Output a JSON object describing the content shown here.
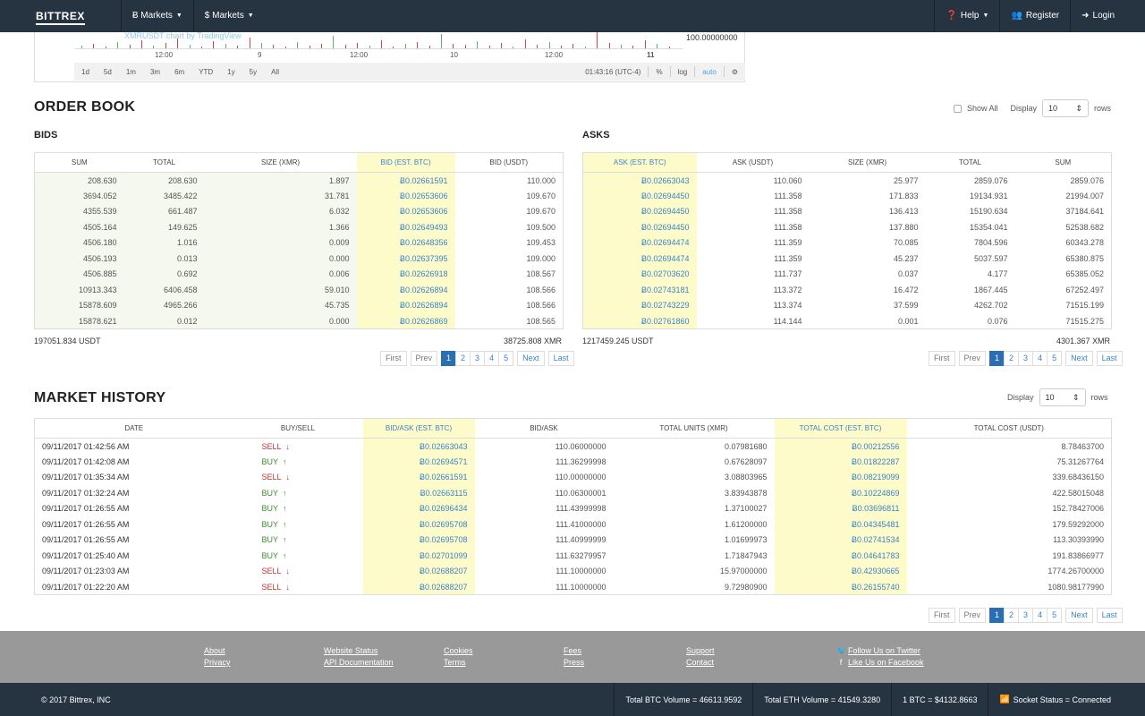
{
  "navbar": {
    "brand": "BITTREX",
    "markets_btc": "Ƀ Markets",
    "markets_usd": "$ Markets",
    "help": "Help",
    "register": "Register",
    "login": "Login"
  },
  "chart": {
    "watermark": "XMRUSDT chart by TradingView",
    "price_label": "100.00000000",
    "time_labels": [
      "12:00",
      "9",
      "12:00",
      "10",
      "12:00",
      "11"
    ],
    "ranges": [
      "1d",
      "5d",
      "1m",
      "3m",
      "6m",
      "YTD",
      "1y",
      "5y",
      "All"
    ],
    "clock": "01:43:16 (UTC-4)",
    "percent": "%",
    "log": "log",
    "auto": "auto"
  },
  "orderbook": {
    "title": "ORDER BOOK",
    "show_all": "Show All",
    "display_label": "Display",
    "display_value": "10",
    "rows_label": "rows",
    "bids": {
      "title": "BIDS",
      "headers": [
        "SUM",
        "TOTAL",
        "SIZE (XMR)",
        "BID (EST. BTC)",
        "BID (USDT)"
      ],
      "rows": [
        [
          "208.630",
          "208.630",
          "1.897",
          "Ƀ0.02661591",
          "110.000"
        ],
        [
          "3694.052",
          "3485.422",
          "31.781",
          "Ƀ0.02653606",
          "109.670"
        ],
        [
          "4355.539",
          "661.487",
          "6.032",
          "Ƀ0.02653606",
          "109.670"
        ],
        [
          "4505.164",
          "149.625",
          "1.366",
          "Ƀ0.02649493",
          "109.500"
        ],
        [
          "4506.180",
          "1.016",
          "0.009",
          "Ƀ0.02648356",
          "109.453"
        ],
        [
          "4506.193",
          "0.013",
          "0.000",
          "Ƀ0.02637395",
          "109.000"
        ],
        [
          "4506.885",
          "0.692",
          "0.006",
          "Ƀ0.02626918",
          "108.567"
        ],
        [
          "10913.343",
          "6406.458",
          "59.010",
          "Ƀ0.02626894",
          "108.566"
        ],
        [
          "15878.609",
          "4965.266",
          "45.735",
          "Ƀ0.02626894",
          "108.566"
        ],
        [
          "15878.621",
          "0.012",
          "0.000",
          "Ƀ0.02626869",
          "108.565"
        ]
      ],
      "total_usdt": "197051.834 USDT",
      "total_xmr": "38725.808 XMR"
    },
    "asks": {
      "title": "ASKS",
      "headers": [
        "ASK (EST. BTC)",
        "ASK (USDT)",
        "SIZE (XMR)",
        "TOTAL",
        "SUM"
      ],
      "rows": [
        [
          "Ƀ0.02663043",
          "110.060",
          "25.977",
          "2859.076",
          "2859.076"
        ],
        [
          "Ƀ0.02694450",
          "111.358",
          "171.833",
          "19134.931",
          "21994.007"
        ],
        [
          "Ƀ0.02694450",
          "111.358",
          "136.413",
          "15190.634",
          "37184.641"
        ],
        [
          "Ƀ0.02694450",
          "111.358",
          "137.880",
          "15354.041",
          "52538.682"
        ],
        [
          "Ƀ0.02694474",
          "111.359",
          "70.085",
          "7804.596",
          "60343.278"
        ],
        [
          "Ƀ0.02694474",
          "111.359",
          "45.237",
          "5037.597",
          "65380.875"
        ],
        [
          "Ƀ0.02703620",
          "111.737",
          "0.037",
          "4.177",
          "65385.052"
        ],
        [
          "Ƀ0.02743181",
          "113.372",
          "16.472",
          "1867.445",
          "67252.497"
        ],
        [
          "Ƀ0.02743229",
          "113.374",
          "37.599",
          "4262.702",
          "71515.199"
        ],
        [
          "Ƀ0.02761860",
          "114.144",
          "0.001",
          "0.076",
          "71515.275"
        ]
      ],
      "total_usdt": "1217459.245 USDT",
      "total_xmr": "4301.367 XMR"
    }
  },
  "pager": {
    "first": "First",
    "prev": "Prev",
    "p1": "1",
    "p2": "2",
    "p3": "3",
    "p4": "4",
    "p5": "5",
    "next": "Next",
    "last": "Last"
  },
  "history": {
    "title": "MARKET HISTORY",
    "display_label": "Display",
    "display_value": "10",
    "rows_label": "rows",
    "headers": [
      "DATE",
      "BUY/SELL",
      "BID/ASK (EST. BTC)",
      "BID/ASK",
      "TOTAL UNITS (XMR)",
      "TOTAL COST (EST. BTC)",
      "TOTAL COST (USDT)"
    ],
    "rows": [
      [
        "09/11/2017 01:42:56 AM",
        "SELL",
        "Ƀ0.02663043",
        "110.06000000",
        "0.07981680",
        "Ƀ0.00212556",
        "8.78463700"
      ],
      [
        "09/11/2017 01:42:08 AM",
        "BUY",
        "Ƀ0.02694571",
        "111.36299998",
        "0.67628097",
        "Ƀ0.01822287",
        "75.31267764"
      ],
      [
        "09/11/2017 01:35:34 AM",
        "SELL",
        "Ƀ0.02661591",
        "110.00000000",
        "3.08803965",
        "Ƀ0.08219099",
        "339.68436150"
      ],
      [
        "09/11/2017 01:32:24 AM",
        "BUY",
        "Ƀ0.02663115",
        "110.06300001",
        "3.83943878",
        "Ƀ0.10224869",
        "422.58015048"
      ],
      [
        "09/11/2017 01:26:55 AM",
        "BUY",
        "Ƀ0.02696434",
        "111.43999998",
        "1.37100027",
        "Ƀ0.03696811",
        "152.78427006"
      ],
      [
        "09/11/2017 01:26:55 AM",
        "BUY",
        "Ƀ0.02695708",
        "111.41000000",
        "1.61200000",
        "Ƀ0.04345481",
        "179.59292000"
      ],
      [
        "09/11/2017 01:26:55 AM",
        "BUY",
        "Ƀ0.02695708",
        "111.40999999",
        "1.01699973",
        "Ƀ0.02741534",
        "113.30393990"
      ],
      [
        "09/11/2017 01:25:40 AM",
        "BUY",
        "Ƀ0.02701099",
        "111.63279957",
        "1.71847943",
        "Ƀ0.04641783",
        "191.83866977"
      ],
      [
        "09/11/2017 01:23:03 AM",
        "SELL",
        "Ƀ0.02688207",
        "111.10000000",
        "15.97000000",
        "Ƀ0.42930665",
        "1774.26700000"
      ],
      [
        "09/11/2017 01:22:20 AM",
        "SELL",
        "Ƀ0.02688207",
        "111.10000000",
        "9.72980900",
        "Ƀ0.26155740",
        "1080.98177990"
      ]
    ]
  },
  "footer": {
    "about": "About",
    "privacy": "Privacy",
    "website_status": "Website Status",
    "api_docs": "API Documentation",
    "cookies": "Cookies",
    "terms": "Terms",
    "fees": "Fees",
    "press": "Press",
    "support": "Support",
    "contact": "Contact",
    "twitter": "Follow Us on Twitter",
    "facebook": "Like Us on Facebook",
    "copyright": "© 2017 Bittrex, INC",
    "btc_volume": "Total BTC Volume = 46613.9592",
    "eth_volume": "Total ETH Volume = 41549.3280",
    "btc_price": "1 BTC = $4132.8663",
    "socket_status": "Socket Status = Connected"
  },
  "colors": {
    "nav_bg": "#263341",
    "highlight_col": "#fdfbc9",
    "link_blue": "#3a84c8",
    "sell_red": "#c9302c",
    "buy_green": "#3c8a2e",
    "footer_gray": "#999999"
  }
}
